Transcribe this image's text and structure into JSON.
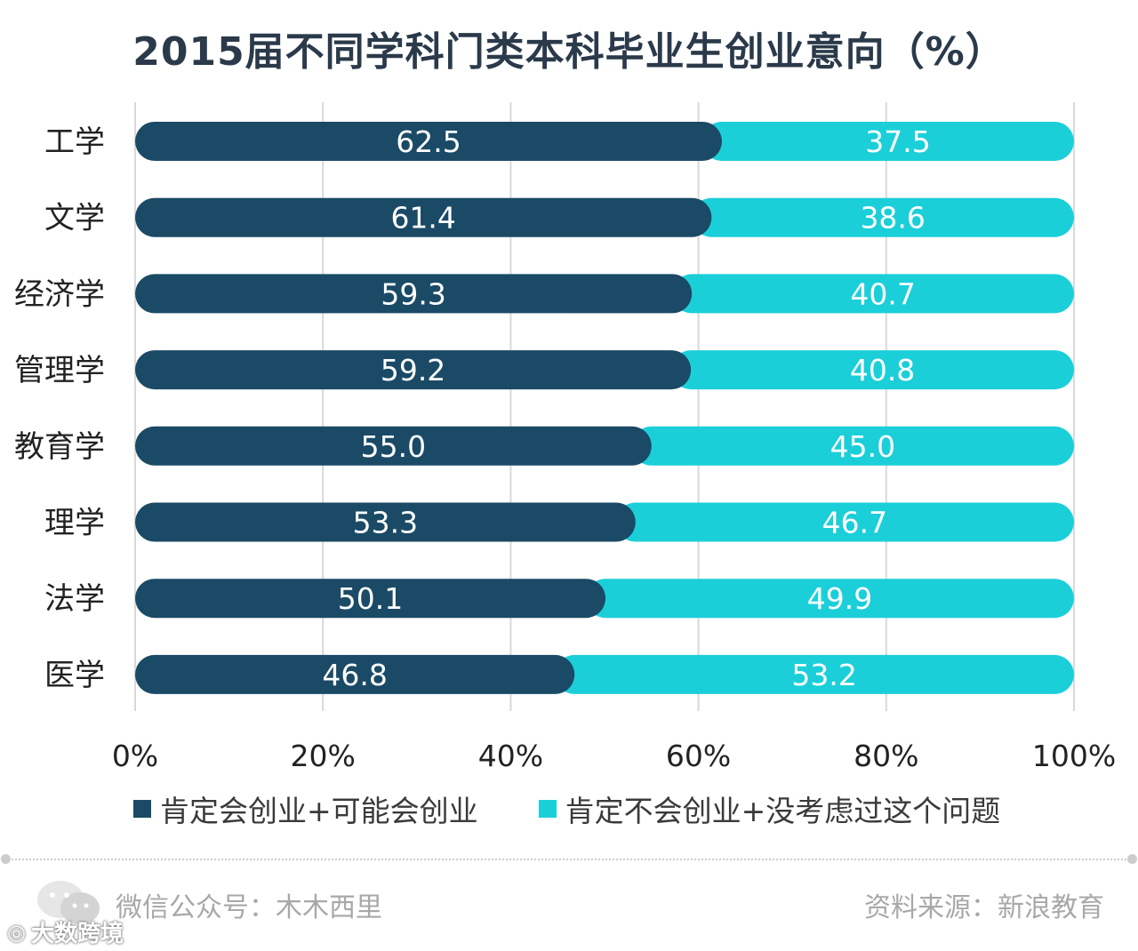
{
  "chart_data": {
    "type": "bar",
    "orientation": "horizontal",
    "stacked": true,
    "title": "2015届不同学科门类本科毕业生创业意向（%）",
    "categories": [
      "工学",
      "文学",
      "经济学",
      "管理学",
      "教育学",
      "理学",
      "法学",
      "医学"
    ],
    "series": [
      {
        "name": "肯定会创业+可能会创业",
        "color": "#1a4a66",
        "values": [
          62.5,
          61.4,
          59.3,
          59.2,
          55.0,
          53.3,
          50.1,
          46.8
        ],
        "labels": [
          "62.5",
          "61.4",
          "59.3",
          "59.2",
          "55.0",
          "53.3",
          "50.1",
          "46.8"
        ]
      },
      {
        "name": "肯定不会创业+没考虑过这个问题",
        "color": "#1bcfd9",
        "values": [
          37.5,
          38.6,
          40.7,
          40.8,
          45.0,
          46.7,
          49.9,
          53.2
        ],
        "labels": [
          "37.5",
          "38.6",
          "40.7",
          "40.8",
          "45.0",
          "46.7",
          "49.9",
          "53.2"
        ]
      }
    ],
    "xlim": [
      0,
      100
    ],
    "xticks": [
      "0%",
      "20%",
      "40%",
      "60%",
      "80%",
      "100%"
    ],
    "grid": true,
    "legend": "bottom"
  },
  "footer": {
    "left": "微信公众号：木木西里",
    "right": "资料来源：新浪教育",
    "watermark": "大数跨境"
  },
  "colors": {
    "title": "#2b3a4a",
    "grid": "#d9d9d9"
  }
}
